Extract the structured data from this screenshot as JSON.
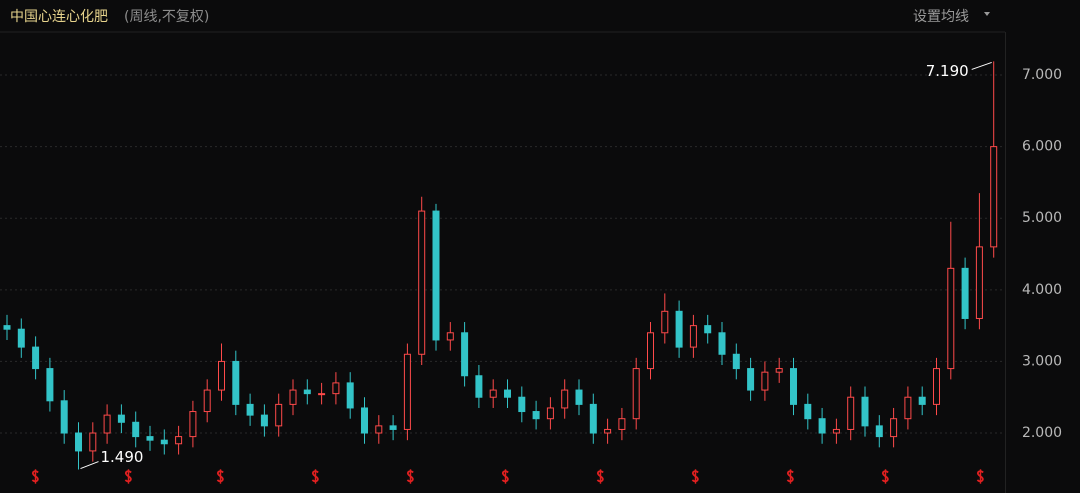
{
  "header": {
    "title": "中国心连心化肥",
    "subtitle": "(周线,不复权)",
    "menu": "设置均线"
  },
  "chart_data": {
    "type": "candlestick",
    "up_color": "#ff4a4a",
    "down_color": "#33c4c8",
    "open": [
      3.5,
      3.45,
      3.2,
      2.9,
      2.45,
      2.0,
      1.75,
      2.0,
      2.25,
      2.15,
      1.95,
      1.9,
      1.85,
      1.95,
      2.3,
      2.6,
      3.0,
      2.4,
      2.25,
      2.1,
      2.4,
      2.6,
      2.55,
      2.55,
      2.7,
      2.35,
      2.0,
      2.1,
      2.05,
      3.1,
      5.1,
      3.3,
      3.4,
      2.8,
      2.5,
      2.6,
      2.5,
      2.3,
      2.2,
      2.35,
      2.6,
      2.4,
      2.0,
      2.05,
      2.2,
      2.9,
      3.4,
      3.7,
      3.2,
      3.5,
      3.4,
      3.1,
      2.9,
      2.6,
      2.85,
      2.9,
      2.4,
      2.2,
      2.0,
      2.05,
      2.5,
      2.1,
      1.95,
      2.2,
      2.5,
      2.4,
      2.9,
      4.3,
      3.6,
      4.6
    ],
    "close": [
      3.45,
      3.2,
      2.9,
      2.45,
      2.0,
      1.75,
      2.0,
      2.25,
      2.15,
      1.95,
      1.9,
      1.85,
      1.95,
      2.3,
      2.6,
      3.0,
      2.4,
      2.25,
      2.1,
      2.4,
      2.6,
      2.55,
      2.55,
      2.7,
      2.35,
      2.0,
      2.1,
      2.05,
      3.1,
      5.1,
      3.3,
      3.4,
      2.8,
      2.5,
      2.6,
      2.5,
      2.3,
      2.2,
      2.35,
      2.6,
      2.4,
      2.0,
      2.05,
      2.2,
      2.9,
      3.4,
      3.7,
      3.2,
      3.5,
      3.4,
      3.1,
      2.9,
      2.6,
      2.85,
      2.9,
      2.4,
      2.2,
      2.0,
      2.05,
      2.5,
      2.1,
      1.95,
      2.2,
      2.5,
      2.4,
      2.9,
      4.3,
      3.6,
      4.6,
      6.0
    ],
    "high": [
      3.65,
      3.6,
      3.35,
      3.05,
      2.6,
      2.15,
      2.15,
      2.4,
      2.4,
      2.3,
      2.1,
      2.05,
      2.1,
      2.45,
      2.75,
      3.25,
      3.15,
      2.55,
      2.4,
      2.55,
      2.75,
      2.75,
      2.7,
      2.85,
      2.85,
      2.5,
      2.25,
      2.25,
      3.25,
      5.3,
      5.2,
      3.55,
      3.55,
      2.95,
      2.75,
      2.75,
      2.65,
      2.45,
      2.5,
      2.75,
      2.75,
      2.55,
      2.2,
      2.35,
      3.05,
      3.55,
      3.95,
      3.85,
      3.65,
      3.65,
      3.55,
      3.25,
      3.05,
      3.0,
      3.05,
      3.05,
      2.55,
      2.35,
      2.2,
      2.65,
      2.65,
      2.25,
      2.35,
      2.65,
      2.65,
      3.05,
      4.95,
      4.45,
      5.35,
      7.19
    ],
    "low": [
      3.3,
      3.05,
      2.75,
      2.3,
      1.85,
      1.49,
      1.6,
      1.85,
      2.0,
      1.8,
      1.75,
      1.7,
      1.7,
      1.8,
      2.15,
      2.45,
      2.25,
      2.1,
      1.95,
      1.95,
      2.25,
      2.4,
      2.4,
      2.4,
      2.2,
      1.85,
      1.85,
      1.9,
      1.9,
      2.95,
      3.15,
      3.15,
      2.65,
      2.35,
      2.35,
      2.35,
      2.15,
      2.05,
      2.05,
      2.2,
      2.25,
      1.85,
      1.85,
      1.9,
      2.05,
      2.75,
      3.25,
      3.05,
      3.05,
      3.25,
      2.95,
      2.75,
      2.45,
      2.45,
      2.7,
      2.25,
      2.05,
      1.85,
      1.85,
      1.9,
      1.95,
      1.8,
      1.8,
      2.05,
      2.25,
      2.25,
      2.75,
      3.45,
      3.45,
      4.45
    ],
    "ylim": [
      1.45,
      7.65
    ],
    "yticks": [
      {
        "value": 2,
        "label": "2.000"
      },
      {
        "value": 3,
        "label": "3.000"
      },
      {
        "value": 4,
        "label": "4.000"
      },
      {
        "value": 5,
        "label": "5.000"
      },
      {
        "value": 6,
        "label": "6.000"
      },
      {
        "value": 7,
        "label": "7.000"
      }
    ],
    "grid": true,
    "annotations": [
      {
        "label": "7.190",
        "value": 7.19
      },
      {
        "label": "1.490",
        "value": 1.49
      }
    ]
  }
}
